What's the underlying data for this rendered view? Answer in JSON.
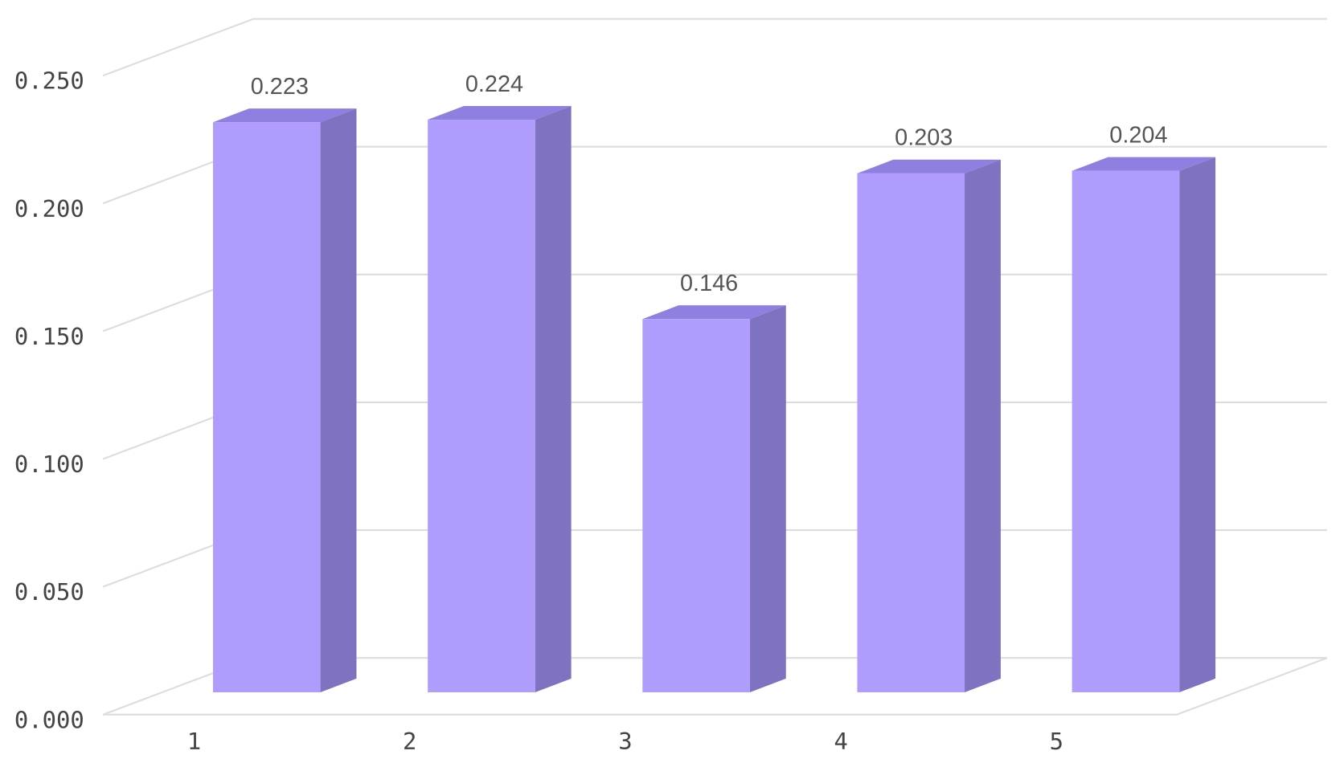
{
  "chart_data": {
    "type": "bar3d",
    "categories": [
      "1",
      "2",
      "3",
      "4",
      "5"
    ],
    "values": [
      0.223,
      0.224,
      0.146,
      0.203,
      0.204
    ],
    "color": "#b09cfd",
    "ylim": [
      0,
      0.25
    ],
    "yticks": [
      {
        "value": 0,
        "label": "0.000"
      },
      {
        "value": 0.05,
        "label": "0.050"
      },
      {
        "value": 0.1,
        "label": "0.100"
      },
      {
        "value": 0.15,
        "label": "0.150"
      },
      {
        "value": 0.2,
        "label": "0.200"
      },
      {
        "value": 0.25,
        "label": "0.250"
      }
    ],
    "grid": true
  }
}
